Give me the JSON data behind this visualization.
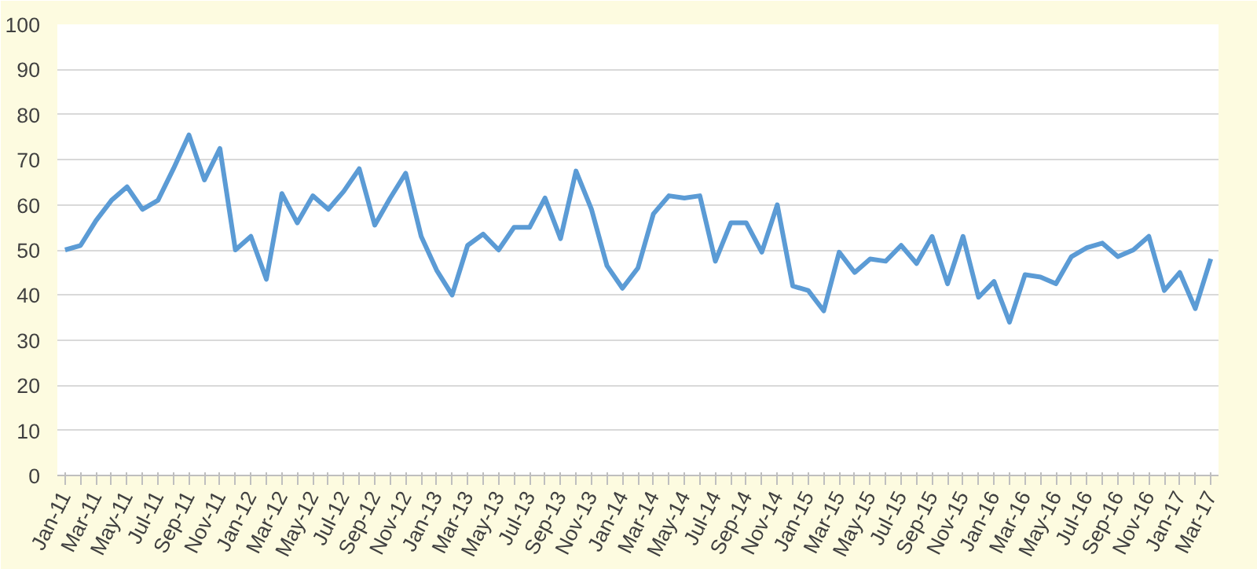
{
  "chart_data": {
    "type": "line",
    "categories": [
      "Jan-11",
      null,
      "Mar-11",
      null,
      "May-11",
      null,
      "Jul-11",
      null,
      "Sep-11",
      null,
      "Nov-11",
      null,
      "Jan-12",
      null,
      "Mar-12",
      null,
      "May-12",
      null,
      "Jul-12",
      null,
      "Sep-12",
      null,
      "Nov-12",
      null,
      "Jan-13",
      null,
      "Mar-13",
      null,
      "May-13",
      null,
      "Jul-13",
      null,
      "Sep-13",
      null,
      "Nov-13",
      null,
      "Jan-14",
      null,
      "Mar-14",
      null,
      "May-14",
      null,
      "Jul-14",
      null,
      "Sep-14",
      null,
      "Nov-14",
      null,
      "Jan-15",
      null,
      "Mar-15",
      null,
      "May-15",
      null,
      "Jul-15",
      null,
      "Sep-15",
      null,
      "Nov-15",
      null,
      "Jan-16",
      null,
      "Mar-16",
      null,
      "May-16",
      null,
      "Jul-16",
      null,
      "Sep-16",
      null,
      "Nov-16",
      null,
      "Jan-17",
      null,
      "Mar-17"
    ],
    "series": [
      {
        "color": "#5b9bd5",
        "values": [
          50,
          51,
          56.5,
          61,
          64,
          59,
          61,
          68,
          75.5,
          65.5,
          72.5,
          50,
          53,
          43.5,
          62.5,
          56,
          62,
          59,
          63,
          68,
          55.5,
          61.5,
          67,
          53,
          45.5,
          40,
          51,
          53.5,
          50,
          55,
          55,
          61.5,
          52.5,
          67.5,
          59,
          46.5,
          41.5,
          46,
          58,
          62,
          61.5,
          62,
          47.5,
          56,
          56,
          49.5,
          60,
          42,
          41,
          36.5,
          49.5,
          45,
          48,
          47.5,
          51,
          47,
          53,
          42.5,
          53,
          39.5,
          43,
          34,
          44.5,
          44,
          42.5,
          48.5,
          50.5,
          51.5,
          48.5,
          50,
          53,
          41,
          45,
          37,
          48
        ]
      }
    ],
    "ylim": [
      0,
      100
    ],
    "yticks": [
      0,
      10,
      20,
      30,
      40,
      50,
      60,
      70,
      80,
      90,
      100
    ],
    "grid": "y",
    "marker": "none",
    "line_style": "solid"
  }
}
